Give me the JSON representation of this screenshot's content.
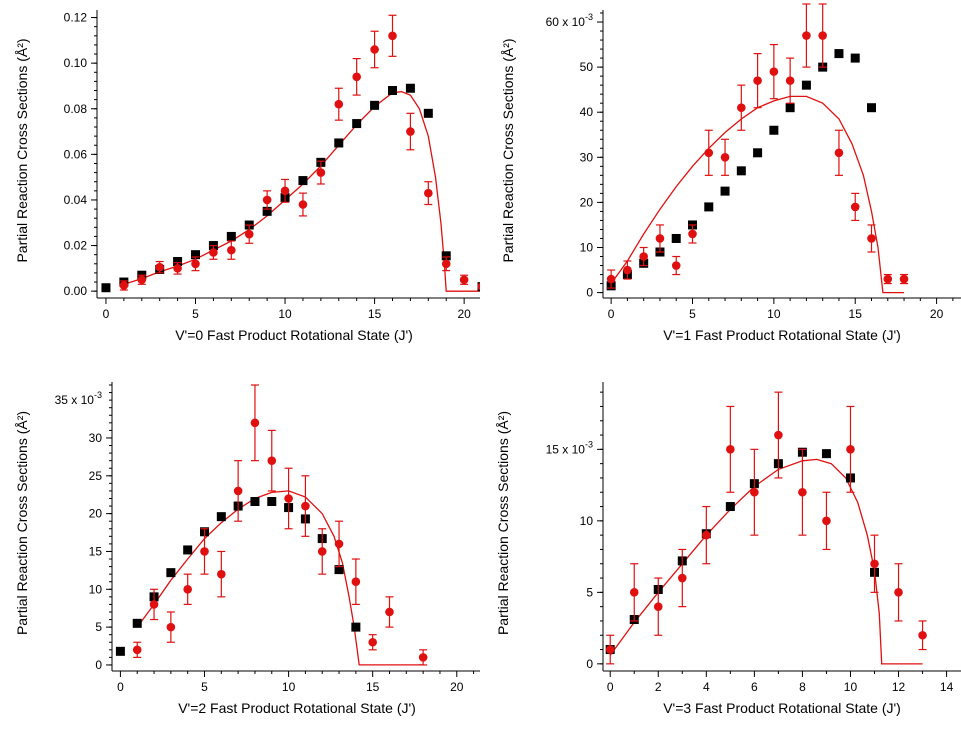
{
  "colors": {
    "axis": "#000000",
    "model": "#e01010",
    "experiment": "#e01010",
    "simulation": "#000000"
  },
  "chart_data": [
    {
      "type": "scatter",
      "xlabel": "V'=0 Fast Product Rotational State (J')",
      "ylabel": "Partial Reaction Cross Sections (Å²)",
      "y_multiplier": "",
      "xlim": [
        -0.5,
        21.5
      ],
      "ylim": [
        -0.003,
        0.122
      ],
      "xticks": [
        0,
        5,
        10,
        15,
        20
      ],
      "xtick_labels": [
        "0",
        "5",
        "10",
        "15",
        "20"
      ],
      "yticks": [
        0,
        0.02,
        0.04,
        0.06,
        0.08,
        0.1,
        0.12
      ],
      "ytick_labels": [
        "0.00",
        "0.02",
        "0.04",
        "0.06",
        "0.08",
        "0.10",
        "0.12"
      ],
      "series": [
        {
          "marker": "square",
          "color": "#000000",
          "x": [
            0,
            1,
            2,
            3,
            4,
            5,
            6,
            7,
            8,
            9,
            10,
            11,
            12,
            13,
            14,
            15,
            16,
            17,
            18,
            19,
            21
          ],
          "y": [
            0.0015,
            0.004,
            0.007,
            0.0095,
            0.013,
            0.016,
            0.02,
            0.024,
            0.029,
            0.035,
            0.041,
            0.0485,
            0.0565,
            0.065,
            0.0735,
            0.0815,
            0.088,
            0.089,
            0.078,
            0.0155,
            0.002
          ]
        },
        {
          "marker": "circle",
          "color": "#e01010",
          "x": [
            1,
            2,
            3,
            4,
            5,
            6,
            7,
            8,
            9,
            10,
            11,
            12,
            13,
            14,
            15,
            16,
            17,
            18,
            19,
            20,
            21
          ],
          "y": [
            0.0025,
            0.005,
            0.0105,
            0.01,
            0.012,
            0.017,
            0.018,
            0.025,
            0.04,
            0.044,
            0.038,
            0.052,
            0.082,
            0.094,
            0.106,
            0.112,
            0.07,
            0.043,
            0.012,
            0.005,
            0.002
          ],
          "err": [
            0.002,
            0.002,
            0.0025,
            0.0025,
            0.003,
            0.003,
            0.004,
            0.004,
            0.004,
            0.005,
            0.005,
            0.005,
            0.007,
            0.008,
            0.008,
            0.009,
            0.008,
            0.005,
            0.003,
            0.002,
            0.001
          ]
        },
        {
          "marker": "line",
          "color": "#e01010",
          "x": [
            1,
            2,
            3,
            4,
            5,
            6,
            7,
            8,
            9,
            10,
            11,
            12,
            13,
            14,
            15,
            16,
            16.5,
            17,
            17.5,
            18,
            18.4,
            18.7,
            18.9,
            19,
            21
          ],
          "y": [
            0.003,
            0.0055,
            0.0085,
            0.011,
            0.014,
            0.018,
            0.022,
            0.027,
            0.033,
            0.04,
            0.047,
            0.055,
            0.064,
            0.073,
            0.081,
            0.087,
            0.0875,
            0.086,
            0.08,
            0.068,
            0.05,
            0.03,
            0.012,
            0,
            0
          ]
        }
      ]
    },
    {
      "type": "scatter",
      "xlabel": "V'=1 Fast Product Rotational State (J')",
      "ylabel": "Partial Reaction Cross Sections (Å²)",
      "y_multiplier": "x 10",
      "y_exponent": "-3",
      "xlim": [
        -0.5,
        21.5
      ],
      "ylim": [
        -1.2,
        62
      ],
      "xticks": [
        0,
        5,
        10,
        15,
        20
      ],
      "xtick_labels": [
        "0",
        "5",
        "10",
        "15",
        "20"
      ],
      "yticks": [
        0,
        10,
        20,
        30,
        40,
        50,
        60
      ],
      "ytick_labels": [
        "0",
        "10",
        "20",
        "30",
        "40",
        "50",
        "60"
      ],
      "series": [
        {
          "marker": "square",
          "color": "#000000",
          "x": [
            0,
            1,
            2,
            3,
            4,
            5,
            6,
            7,
            8,
            9,
            10,
            11,
            12,
            13,
            14,
            15,
            16
          ],
          "y": [
            1.5,
            4,
            6.5,
            9,
            12,
            15,
            19,
            22.5,
            27,
            31,
            36,
            41,
            46,
            50,
            53,
            52,
            41
          ]
        },
        {
          "marker": "circle",
          "color": "#e01010",
          "x": [
            0,
            1,
            2,
            3,
            4,
            5,
            6,
            7,
            8,
            9,
            10,
            11,
            12,
            13,
            14,
            15,
            16,
            17,
            18
          ],
          "y": [
            3,
            5,
            8,
            12,
            6,
            13,
            31,
            30,
            41,
            47,
            49,
            47,
            57,
            57,
            31,
            19,
            12,
            3,
            3
          ],
          "err": [
            2,
            2,
            2,
            3,
            2,
            2,
            5,
            4,
            5,
            6,
            6,
            5,
            7,
            7,
            5,
            3,
            3,
            1,
            1
          ]
        },
        {
          "marker": "line",
          "color": "#e01010",
          "x": [
            0,
            1,
            2,
            3,
            4,
            5,
            6,
            7,
            8,
            9,
            10,
            11,
            12,
            13,
            14,
            14.8,
            15.5,
            16,
            16.4,
            16.7,
            18
          ],
          "y": [
            2,
            7,
            13,
            18.5,
            23.5,
            28,
            32,
            35.5,
            38.5,
            41,
            42.5,
            43.5,
            43.5,
            42,
            38.5,
            33,
            26,
            18,
            10,
            0,
            0
          ]
        }
      ]
    },
    {
      "type": "scatter",
      "xlabel": "V'=2 Fast Product Rotational State (J')",
      "ylabel": "Partial Reaction Cross Sections (Å²)",
      "y_multiplier": "35 x 10",
      "y_exponent": "-3",
      "xlim": [
        -0.5,
        21.5
      ],
      "ylim": [
        -0.8,
        37
      ],
      "xticks": [
        0,
        5,
        10,
        15,
        20
      ],
      "xtick_labels": [
        "0",
        "5",
        "10",
        "15",
        "20"
      ],
      "yticks": [
        0,
        5,
        10,
        15,
        20,
        25,
        30
      ],
      "ytick_labels": [
        "0",
        "5",
        "10",
        "15",
        "20",
        "25",
        "30"
      ],
      "series": [
        {
          "marker": "square",
          "color": "#000000",
          "x": [
            0,
            1,
            2,
            3,
            4,
            5,
            6,
            7,
            8,
            9,
            10,
            11,
            12,
            13,
            14
          ],
          "y": [
            1.8,
            5.5,
            9,
            12.2,
            15.2,
            17.6,
            19.6,
            21,
            21.6,
            21.6,
            20.8,
            19.3,
            16.7,
            12.6,
            5
          ]
        },
        {
          "marker": "circle",
          "color": "#e01010",
          "x": [
            1,
            2,
            3,
            4,
            5,
            6,
            7,
            8,
            9,
            10,
            11,
            12,
            13,
            14,
            15,
            16,
            18
          ],
          "y": [
            2,
            8,
            5,
            10,
            15,
            12,
            23,
            32,
            27,
            22,
            21,
            15,
            16,
            11,
            3,
            7,
            1
          ],
          "err": [
            1,
            2,
            2,
            2,
            3,
            3,
            4,
            5,
            4,
            4,
            4,
            3,
            3,
            3,
            1,
            2,
            1
          ]
        },
        {
          "marker": "line",
          "color": "#e01010",
          "x": [
            1,
            2,
            3,
            4,
            5,
            6,
            7,
            8,
            9,
            10,
            11,
            12,
            12.7,
            13.2,
            13.6,
            13.9,
            14.2,
            18
          ],
          "y": [
            5,
            8,
            11.2,
            14,
            16.7,
            18.8,
            20.6,
            22,
            22.8,
            23,
            22.2,
            20,
            17,
            13.5,
            9,
            5,
            0,
            0
          ]
        }
      ]
    },
    {
      "type": "scatter",
      "xlabel": "V'=3 Fast Product Rotational State (J')",
      "ylabel": "Partial Reaction Cross Sections (Å²)",
      "y_multiplier": "15 x 10",
      "y_exponent": "-3",
      "xlim": [
        -0.3,
        14.6
      ],
      "ylim": [
        -0.5,
        19.5
      ],
      "xticks": [
        0,
        2,
        4,
        6,
        8,
        10,
        12,
        14
      ],
      "xtick_labels": [
        "0",
        "2",
        "4",
        "6",
        "8",
        "10",
        "12",
        "14"
      ],
      "yticks": [
        0,
        5,
        10,
        15
      ],
      "ytick_labels": [
        "0",
        "5",
        "10",
        ""
      ],
      "series": [
        {
          "marker": "square",
          "color": "#000000",
          "x": [
            0,
            1,
            2,
            3,
            4,
            5,
            6,
            7,
            8,
            9,
            10,
            11
          ],
          "y": [
            1,
            3.1,
            5.2,
            7.2,
            9.1,
            11,
            12.6,
            14,
            14.8,
            14.7,
            13,
            6.4
          ]
        },
        {
          "marker": "circle",
          "color": "#e01010",
          "x": [
            0,
            1,
            2,
            3,
            4,
            5,
            6,
            7,
            8,
            9,
            10,
            11,
            12,
            13
          ],
          "y": [
            1,
            5,
            4,
            6,
            9,
            15,
            12,
            16,
            12,
            10,
            15,
            7,
            5,
            2
          ],
          "err": [
            1,
            2,
            2,
            2,
            2,
            3,
            3,
            3,
            3,
            2,
            3,
            2,
            2,
            1
          ]
        },
        {
          "marker": "line",
          "color": "#e01010",
          "x": [
            0,
            1,
            2,
            3,
            4,
            5,
            6,
            7,
            8,
            8.6,
            9.2,
            9.8,
            10.3,
            10.7,
            11,
            11.2,
            11.3,
            13
          ],
          "y": [
            0.6,
            2.9,
            5,
            7,
            9,
            10.8,
            12.4,
            13.6,
            14.2,
            14.3,
            14,
            13,
            11.3,
            9,
            6.5,
            3.5,
            0,
            0
          ]
        }
      ]
    }
  ]
}
